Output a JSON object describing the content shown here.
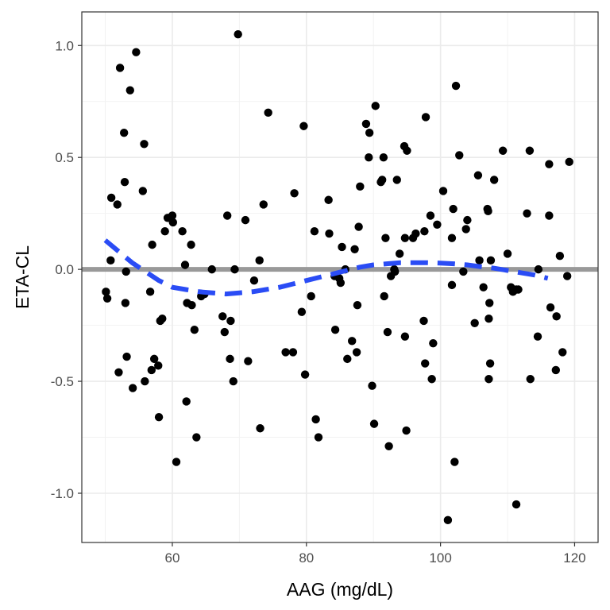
{
  "chart_data": {
    "type": "scatter",
    "title": "",
    "xlabel": "AAG (mg/dL)",
    "ylabel": "ETA-CL",
    "xlim": [
      46.5,
      123.5
    ],
    "ylim": [
      -1.22,
      1.15
    ],
    "xticks": [
      {
        "value": 60,
        "label": "60"
      },
      {
        "value": 80,
        "label": "80"
      },
      {
        "value": 100,
        "label": "100"
      },
      {
        "value": 120,
        "label": "120"
      }
    ],
    "yticks": [
      {
        "value": -1.0,
        "label": "-1.0"
      },
      {
        "value": -0.5,
        "label": "-0.5"
      },
      {
        "value": 0.0,
        "label": "0.0"
      },
      {
        "value": 0.5,
        "label": "0.5"
      },
      {
        "value": 1.0,
        "label": "1.0"
      }
    ],
    "grid": true,
    "points": [
      [
        50.1,
        -0.1
      ],
      [
        50.3,
        -0.13
      ],
      [
        50.8,
        0.04
      ],
      [
        50.9,
        0.32
      ],
      [
        51.8,
        0.29
      ],
      [
        52.0,
        -0.46
      ],
      [
        52.2,
        0.9
      ],
      [
        52.8,
        0.61
      ],
      [
        52.9,
        0.39
      ],
      [
        53.0,
        -0.15
      ],
      [
        53.1,
        -0.01
      ],
      [
        53.2,
        -0.39
      ],
      [
        53.7,
        0.8
      ],
      [
        54.1,
        -0.53
      ],
      [
        54.6,
        0.97
      ],
      [
        55.6,
        0.35
      ],
      [
        55.8,
        0.56
      ],
      [
        55.9,
        -0.5
      ],
      [
        56.7,
        -0.1
      ],
      [
        56.9,
        -0.45
      ],
      [
        57.0,
        0.11
      ],
      [
        57.3,
        -0.4
      ],
      [
        57.9,
        -0.43
      ],
      [
        58.0,
        -0.66
      ],
      [
        58.2,
        -0.23
      ],
      [
        58.5,
        -0.22
      ],
      [
        58.9,
        0.17
      ],
      [
        59.3,
        0.23
      ],
      [
        59.6,
        0.23
      ],
      [
        60.0,
        0.24
      ],
      [
        60.1,
        0.21
      ],
      [
        60.6,
        -0.86
      ],
      [
        61.5,
        0.17
      ],
      [
        61.9,
        0.02
      ],
      [
        62.1,
        -0.59
      ],
      [
        62.2,
        -0.15
      ],
      [
        62.8,
        0.11
      ],
      [
        62.9,
        -0.16
      ],
      [
        63.3,
        -0.27
      ],
      [
        63.6,
        -0.75
      ],
      [
        64.3,
        -0.12
      ],
      [
        64.8,
        -0.11
      ],
      [
        65.9,
        0.0
      ],
      [
        67.5,
        -0.21
      ],
      [
        67.8,
        -0.28
      ],
      [
        68.2,
        0.24
      ],
      [
        68.6,
        -0.4
      ],
      [
        68.7,
        -0.23
      ],
      [
        69.1,
        -0.5
      ],
      [
        69.3,
        0.0
      ],
      [
        69.8,
        1.05
      ],
      [
        70.9,
        0.22
      ],
      [
        71.3,
        -0.41
      ],
      [
        72.2,
        -0.05
      ],
      [
        73.0,
        0.04
      ],
      [
        73.1,
        -0.71
      ],
      [
        73.6,
        0.29
      ],
      [
        74.3,
        0.7
      ],
      [
        76.9,
        -0.37
      ],
      [
        78.0,
        -0.37
      ],
      [
        78.2,
        0.34
      ],
      [
        79.3,
        -0.19
      ],
      [
        79.6,
        0.64
      ],
      [
        79.8,
        -0.47
      ],
      [
        80.7,
        -0.12
      ],
      [
        81.2,
        0.17
      ],
      [
        81.4,
        -0.67
      ],
      [
        81.8,
        -0.75
      ],
      [
        83.3,
        0.31
      ],
      [
        83.4,
        0.16
      ],
      [
        84.2,
        -0.03
      ],
      [
        84.3,
        -0.27
      ],
      [
        84.9,
        -0.04
      ],
      [
        85.1,
        -0.06
      ],
      [
        85.3,
        0.1
      ],
      [
        85.8,
        0.0
      ],
      [
        86.1,
        -0.4
      ],
      [
        86.8,
        -0.32
      ],
      [
        87.2,
        0.09
      ],
      [
        87.5,
        -0.37
      ],
      [
        87.6,
        -0.16
      ],
      [
        87.8,
        0.19
      ],
      [
        88.0,
        0.37
      ],
      [
        88.9,
        0.65
      ],
      [
        89.3,
        0.5
      ],
      [
        89.4,
        0.61
      ],
      [
        89.8,
        -0.52
      ],
      [
        90.1,
        -0.69
      ],
      [
        90.3,
        0.73
      ],
      [
        91.1,
        0.39
      ],
      [
        91.3,
        0.4
      ],
      [
        91.5,
        0.5
      ],
      [
        91.6,
        -0.12
      ],
      [
        91.8,
        0.14
      ],
      [
        92.1,
        -0.28
      ],
      [
        92.3,
        -0.79
      ],
      [
        92.6,
        -0.03
      ],
      [
        93.1,
        0.0
      ],
      [
        93.2,
        -0.01
      ],
      [
        93.5,
        0.4
      ],
      [
        93.9,
        0.07
      ],
      [
        94.6,
        0.55
      ],
      [
        94.7,
        0.14
      ],
      [
        94.7,
        -0.3
      ],
      [
        94.9,
        -0.72
      ],
      [
        95.0,
        0.53
      ],
      [
        95.9,
        0.14
      ],
      [
        96.3,
        0.16
      ],
      [
        97.5,
        -0.23
      ],
      [
        97.6,
        0.17
      ],
      [
        97.7,
        -0.42
      ],
      [
        97.8,
        0.68
      ],
      [
        98.5,
        0.24
      ],
      [
        98.7,
        -0.49
      ],
      [
        98.9,
        -0.33
      ],
      [
        99.5,
        0.2
      ],
      [
        100.4,
        0.35
      ],
      [
        101.1,
        -1.12
      ],
      [
        101.7,
        -0.07
      ],
      [
        101.7,
        0.14
      ],
      [
        101.9,
        0.27
      ],
      [
        102.1,
        -0.86
      ],
      [
        102.3,
        0.82
      ],
      [
        102.8,
        0.51
      ],
      [
        103.4,
        -0.01
      ],
      [
        103.8,
        0.18
      ],
      [
        104.0,
        0.22
      ],
      [
        105.1,
        -0.24
      ],
      [
        105.6,
        0.42
      ],
      [
        105.8,
        0.04
      ],
      [
        106.4,
        -0.08
      ],
      [
        107.0,
        0.27
      ],
      [
        107.1,
        0.26
      ],
      [
        107.2,
        -0.49
      ],
      [
        107.2,
        -0.22
      ],
      [
        107.3,
        -0.15
      ],
      [
        107.4,
        -0.42
      ],
      [
        107.5,
        0.04
      ],
      [
        108.0,
        0.4
      ],
      [
        109.3,
        0.53
      ],
      [
        110.0,
        0.07
      ],
      [
        110.5,
        -0.08
      ],
      [
        110.8,
        -0.1
      ],
      [
        111.3,
        -0.09
      ],
      [
        111.3,
        -1.05
      ],
      [
        111.6,
        -0.09
      ],
      [
        112.9,
        0.25
      ],
      [
        113.3,
        0.53
      ],
      [
        113.4,
        -0.49
      ],
      [
        114.5,
        -0.3
      ],
      [
        114.6,
        0.0
      ],
      [
        116.2,
        0.47
      ],
      [
        116.2,
        0.24
      ],
      [
        116.4,
        -0.17
      ],
      [
        117.2,
        -0.45
      ],
      [
        117.3,
        -0.21
      ],
      [
        117.8,
        0.06
      ],
      [
        118.2,
        -0.37
      ],
      [
        118.9,
        -0.03
      ],
      [
        119.2,
        0.48
      ]
    ],
    "reference_line": {
      "y": 0.0,
      "color": "#999999"
    },
    "smooth_line": {
      "color": "#2a4cf5",
      "style": "dashed",
      "x": [
        50,
        52,
        54,
        56,
        58,
        60,
        62,
        64,
        66,
        68,
        70,
        72,
        74,
        76,
        78,
        80,
        82,
        84,
        86,
        88,
        90,
        92,
        94,
        96,
        98,
        100,
        102,
        104,
        106,
        108,
        110,
        112,
        114,
        116
      ],
      "y": [
        0.13,
        0.08,
        0.03,
        -0.01,
        -0.05,
        -0.08,
        -0.09,
        -0.1,
        -0.105,
        -0.11,
        -0.105,
        -0.1,
        -0.09,
        -0.08,
        -0.065,
        -0.05,
        -0.035,
        -0.02,
        -0.005,
        0.01,
        0.02,
        0.025,
        0.03,
        0.03,
        0.03,
        0.028,
        0.025,
        0.02,
        0.012,
        0.005,
        -0.005,
        -0.015,
        -0.025,
        -0.04
      ]
    }
  }
}
